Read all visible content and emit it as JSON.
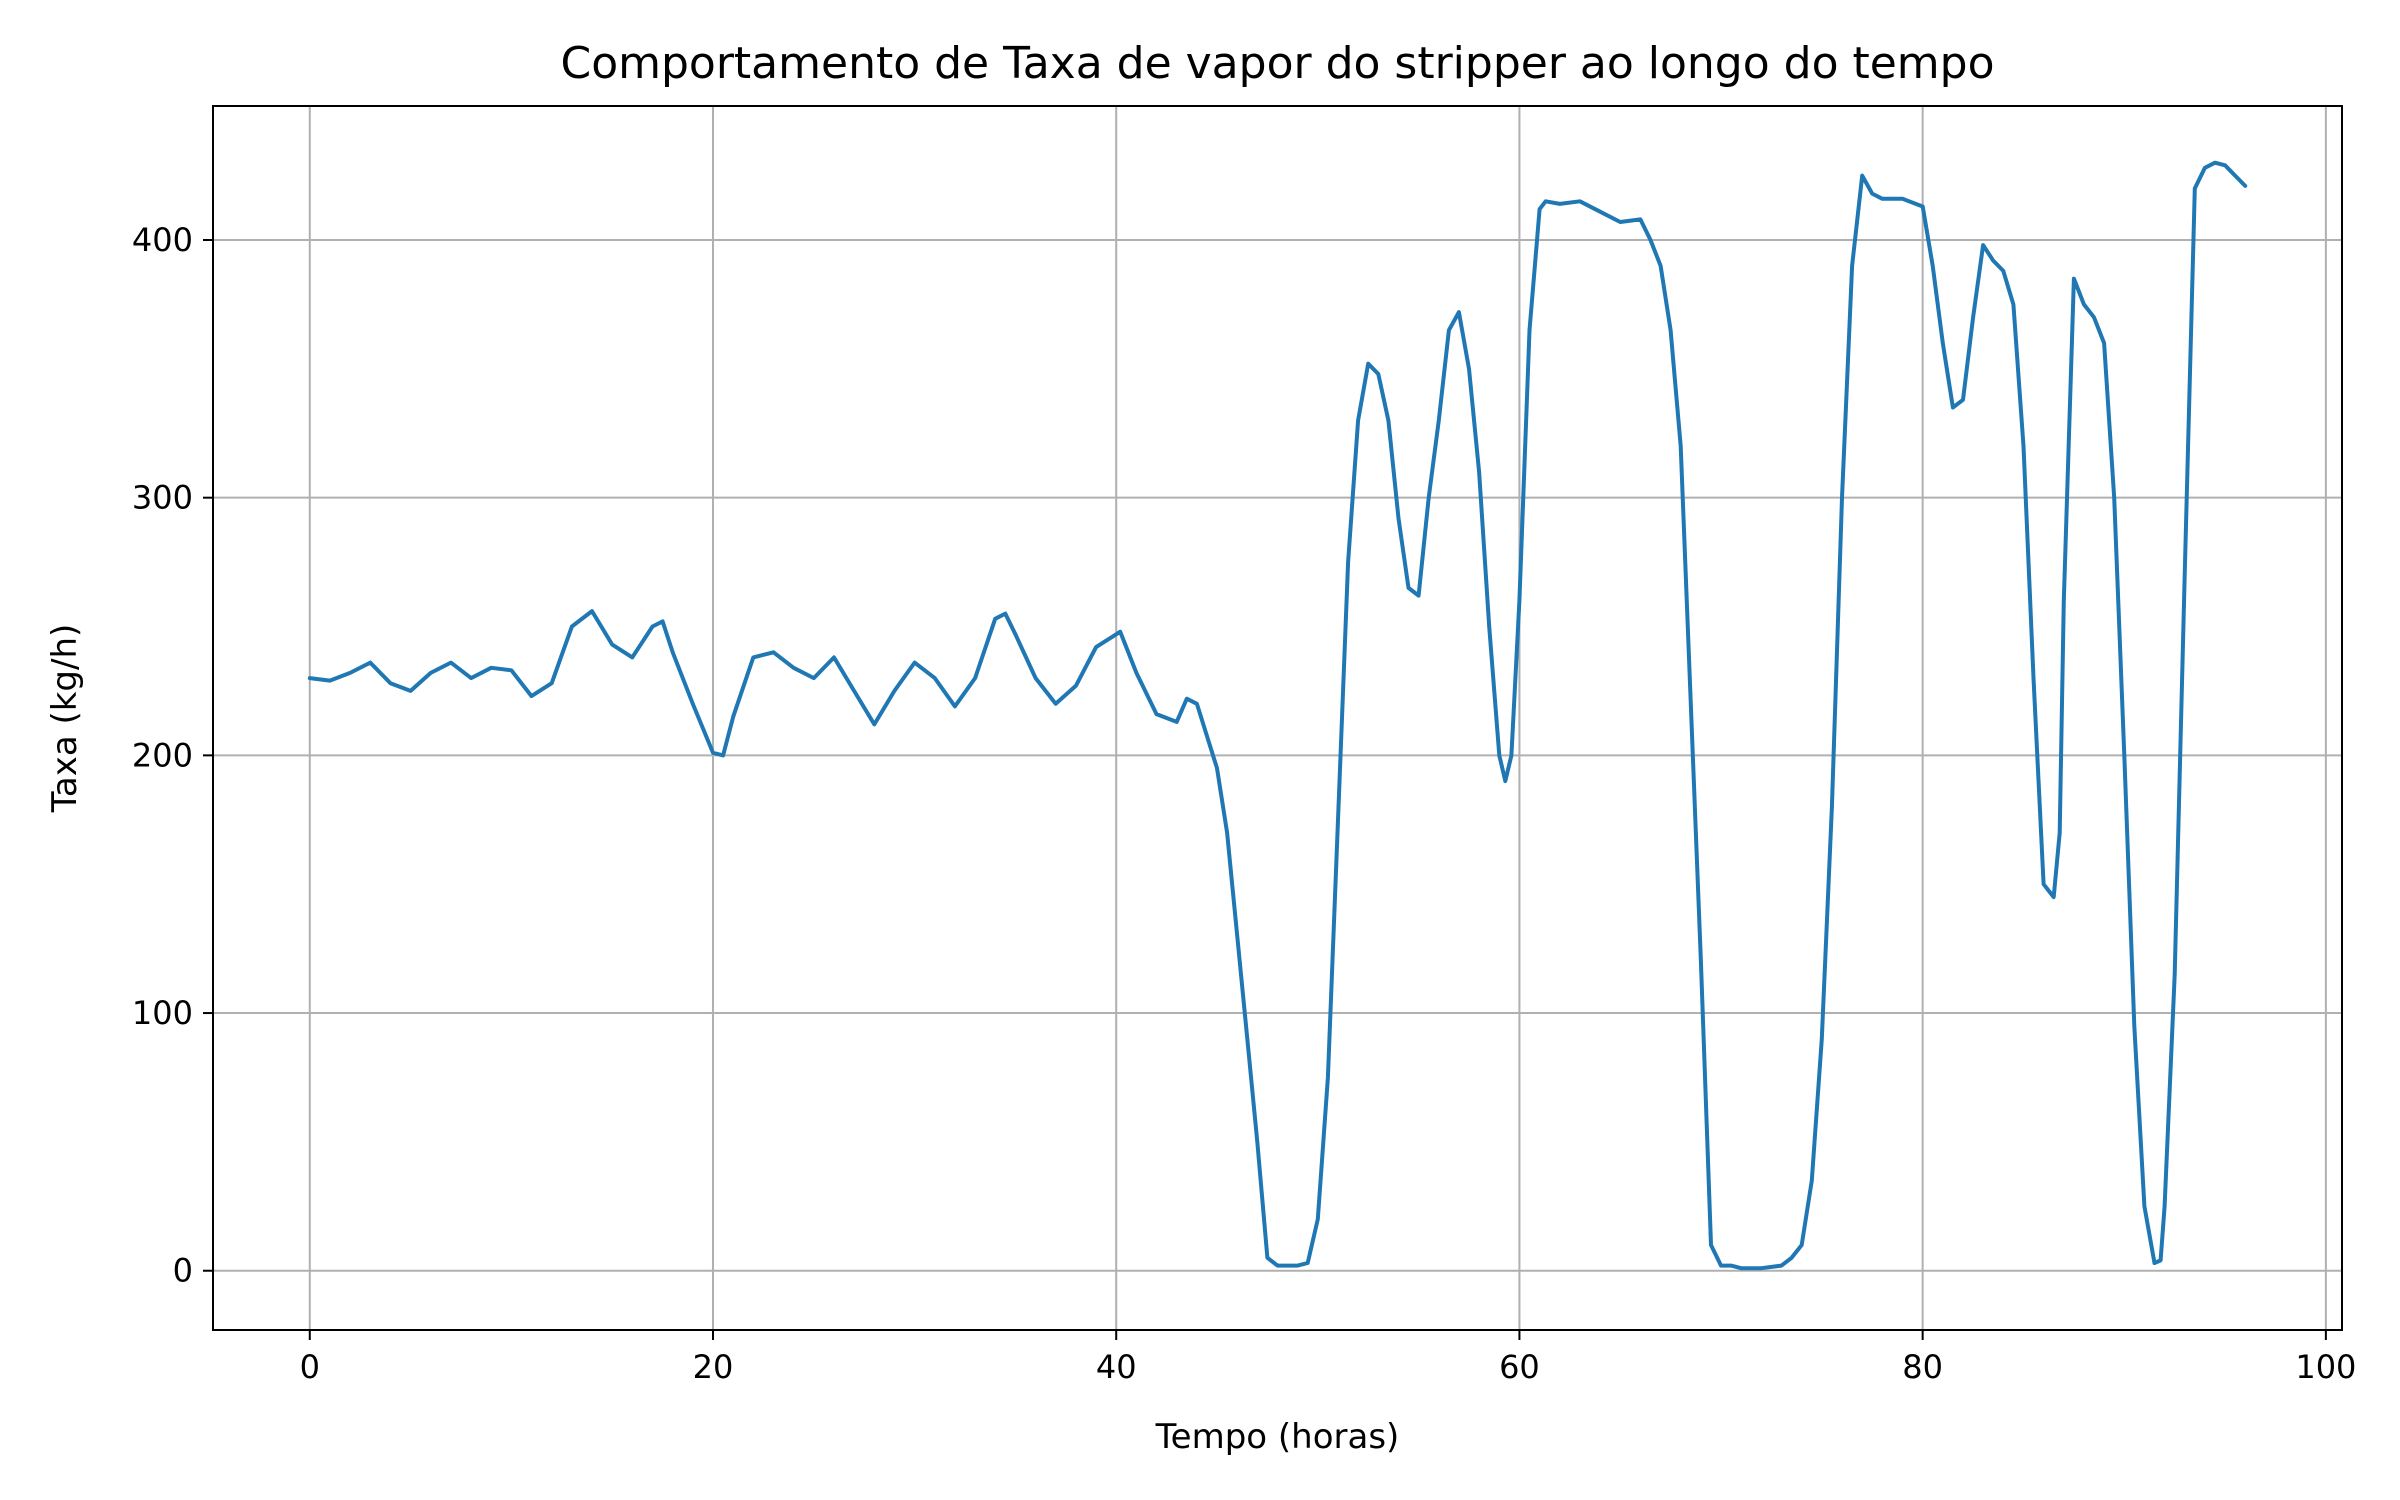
{
  "chart_data": {
    "type": "line",
    "title": "Comportamento de Taxa de vapor do stripper ao longo do tempo",
    "xlabel": "Tempo (horas)",
    "ylabel": "Taxa (kg/h)",
    "xlim": [
      -4.8,
      100.8
    ],
    "ylim": [
      -23,
      452
    ],
    "xticks": [
      0,
      20,
      40,
      60,
      80,
      100
    ],
    "yticks": [
      0,
      100,
      200,
      300,
      400
    ],
    "grid": true,
    "line_color": "#1f77b4",
    "series": [
      {
        "x": [
          0,
          1,
          2,
          3,
          4,
          5,
          6,
          7,
          8,
          9,
          10,
          11,
          12,
          13,
          14,
          15,
          16,
          17,
          17.5,
          18,
          19,
          20,
          20.5,
          21,
          22,
          23,
          24,
          25,
          26,
          27,
          28,
          29,
          30,
          31,
          32,
          33,
          34,
          34.5,
          35,
          36,
          37,
          38,
          39,
          40,
          40.2,
          41,
          42,
          43,
          43.5,
          44,
          45,
          45.5,
          46,
          46.5,
          47,
          47.5,
          48,
          48.5,
          49,
          49.5,
          50,
          50.5,
          51,
          51.5,
          52,
          52.5,
          53,
          53.5,
          54,
          54.5,
          55,
          55.5,
          56,
          56.5,
          57,
          57.5,
          58,
          58.5,
          59,
          59.3,
          59.6,
          60,
          60.5,
          61,
          61.3,
          62,
          63,
          64,
          65,
          66,
          66.5,
          67,
          67.5,
          68,
          68.5,
          69,
          69.5,
          70,
          70.5,
          71,
          72,
          73,
          73.5,
          74,
          74.5,
          75,
          75.5,
          76,
          76.5,
          77,
          77.5,
          78,
          79,
          80,
          80.5,
          81,
          81.5,
          82,
          82.5,
          83,
          83.5,
          84,
          84.5,
          85,
          85.5,
          86,
          86.5,
          86.8,
          87,
          87.5,
          88,
          88.5,
          89,
          89.5,
          90,
          90.5,
          91,
          91.5,
          91.8,
          92,
          92.5,
          93,
          93.5,
          94,
          94.5,
          95,
          95.5,
          96
        ],
        "y": [
          230,
          229,
          232,
          236,
          228,
          225,
          232,
          236,
          230,
          234,
          233,
          223,
          228,
          250,
          256,
          243,
          238,
          250,
          252,
          240,
          220,
          201,
          200,
          215,
          238,
          240,
          234,
          230,
          238,
          225,
          212,
          225,
          236,
          230,
          219,
          230,
          253,
          255,
          247,
          230,
          220,
          227,
          242,
          247,
          248,
          232,
          216,
          213,
          222,
          220,
          195,
          170,
          130,
          90,
          50,
          5,
          2,
          2,
          2,
          3,
          20,
          75,
          175,
          275,
          330,
          352,
          348,
          330,
          292,
          265,
          262,
          300,
          330,
          365,
          372,
          350,
          310,
          250,
          200,
          190,
          200,
          260,
          365,
          412,
          415,
          414,
          415,
          411,
          407,
          408,
          400,
          390,
          365,
          320,
          220,
          120,
          10,
          2,
          2,
          1,
          1,
          2,
          5,
          10,
          35,
          90,
          180,
          300,
          390,
          425,
          418,
          416,
          416,
          413,
          390,
          360,
          335,
          338,
          370,
          398,
          392,
          388,
          375,
          320,
          230,
          150,
          145,
          170,
          260,
          385,
          375,
          370,
          360,
          300,
          200,
          95,
          25,
          3,
          4,
          25,
          115,
          270,
          420,
          428,
          430,
          429,
          425,
          421
        ]
      }
    ]
  }
}
